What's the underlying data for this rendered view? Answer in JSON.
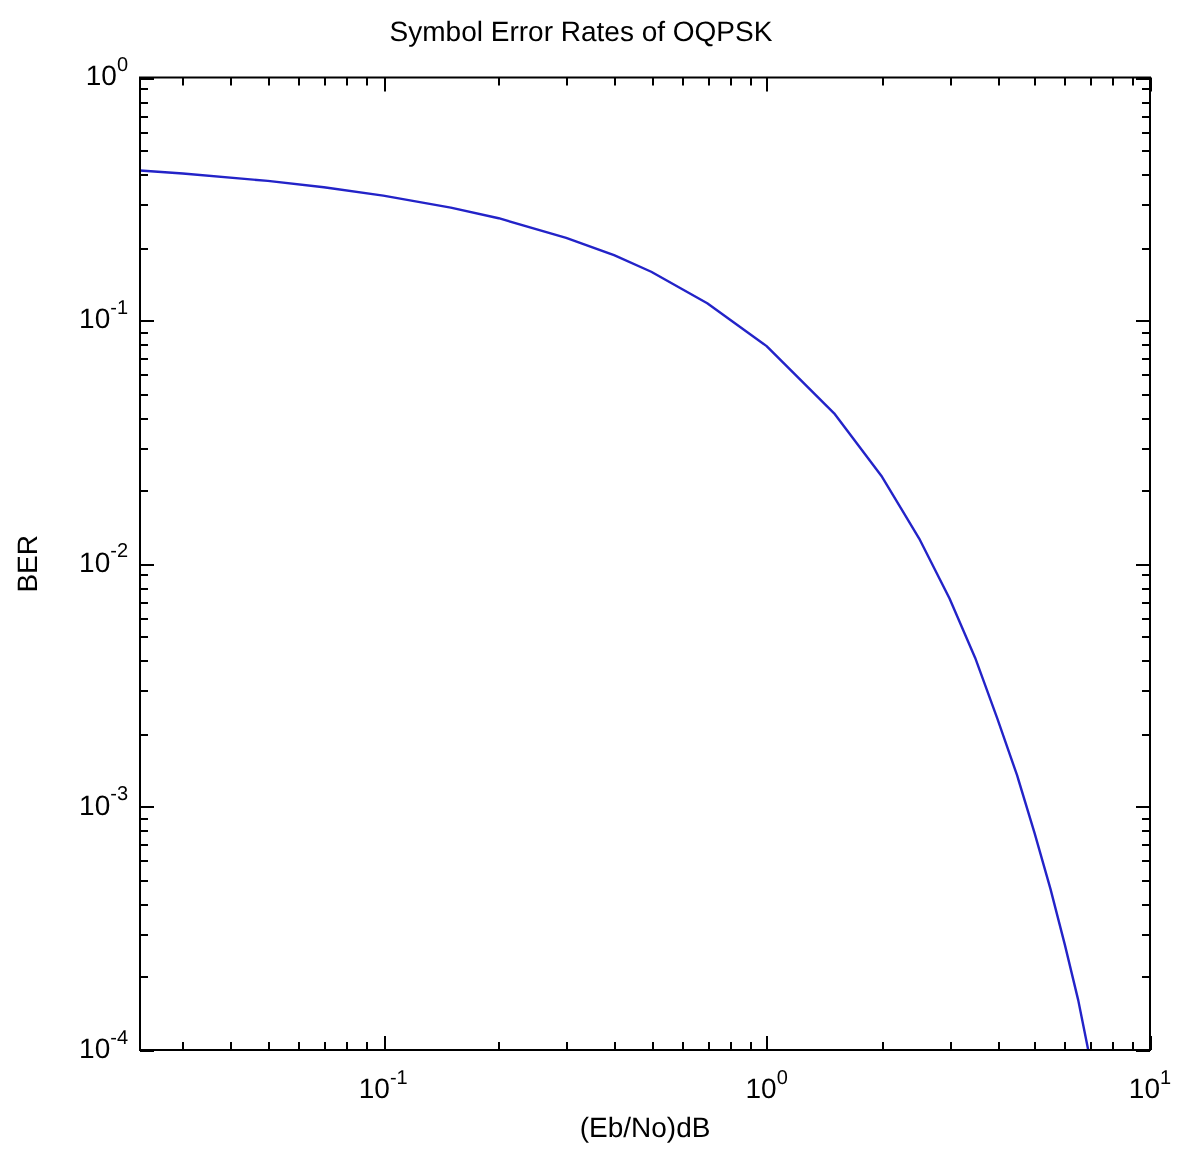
{
  "chart_data": {
    "type": "line",
    "title": "Symbol Error Rates of OQPSK",
    "xlabel": "(Eb/No)dB",
    "ylabel": "BER",
    "log": "xy",
    "grid": false,
    "legend": false,
    "marker": "none",
    "line_style": "solid",
    "xlim": [
      0.0232,
      10
    ],
    "ylim": [
      0.0001,
      1
    ],
    "xticks": [
      {
        "value": 0.1,
        "label": "10$^{-1}$"
      },
      {
        "value": 1,
        "label": "10$^{0}$"
      },
      {
        "value": 10,
        "label": "10$^{1}$"
      }
    ],
    "yticks": [
      {
        "value": 0.0001,
        "label": "10$^{-4}$"
      },
      {
        "value": 0.001,
        "label": "10$^{-3}$"
      },
      {
        "value": 0.01,
        "label": "10$^{-2}$"
      },
      {
        "value": 0.1,
        "label": "10$^{-1}$"
      },
      {
        "value": 1,
        "label": "10$^{0}$"
      }
    ],
    "x": [
      0.0232,
      0.03,
      0.05,
      0.07,
      0.1,
      0.15,
      0.2,
      0.3,
      0.4,
      0.5,
      0.7,
      1,
      1.5,
      2,
      2.5,
      3,
      3.5,
      4,
      4.5,
      5,
      5.5,
      6,
      6.5,
      6.9
    ],
    "series": [
      {
        "color": "#2323c8",
        "values": [
          0.415,
          0.403,
          0.376,
          0.354,
          0.327,
          0.292,
          0.264,
          0.219,
          0.186,
          0.159,
          0.118,
          0.0786,
          0.0416,
          0.0228,
          0.0127,
          0.0072,
          0.0041,
          0.0023,
          0.00135,
          0.00078,
          0.00046,
          0.00027,
          0.00016,
          0.0001
        ]
      }
    ]
  }
}
